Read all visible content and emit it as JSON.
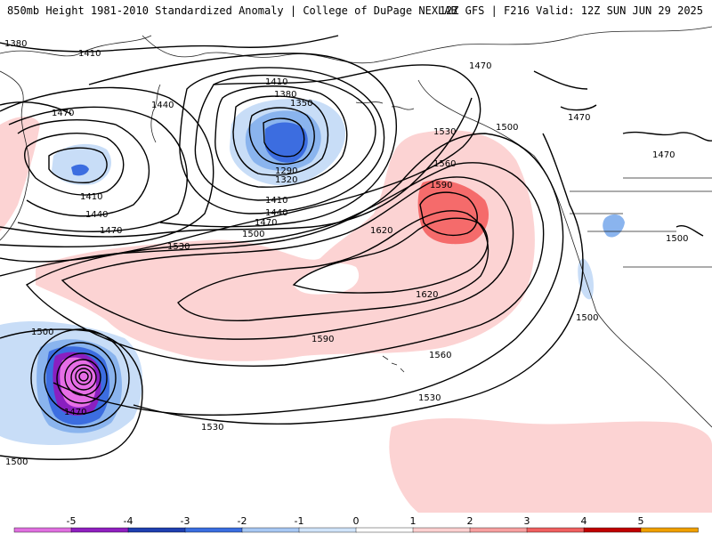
{
  "header": {
    "title": "850mb Height 1981-2010 Standardized Anomaly | College of DuPage NEXLAB",
    "run_info": "12Z GFS | F216 Valid: 12Z SUN JUN 29 2025"
  },
  "contours": {
    "labels": [
      {
        "id": "c1380a",
        "text": "1380"
      },
      {
        "id": "c1410a",
        "text": "1410"
      },
      {
        "id": "c1470a",
        "text": "1470"
      },
      {
        "id": "c1440a",
        "text": "1440"
      },
      {
        "id": "c1410b",
        "text": "1410"
      },
      {
        "id": "c1380b",
        "text": "1380"
      },
      {
        "id": "c1350",
        "text": "1350"
      },
      {
        "id": "c1290",
        "text": "1290"
      },
      {
        "id": "c1320",
        "text": "1320"
      },
      {
        "id": "c1410c",
        "text": "1410"
      },
      {
        "id": "c1440b",
        "text": "1440"
      },
      {
        "id": "c1470b",
        "text": "1470"
      },
      {
        "id": "c1500a",
        "text": "1500"
      },
      {
        "id": "c1410d",
        "text": "1410"
      },
      {
        "id": "c1440c",
        "text": "1440"
      },
      {
        "id": "c1470c",
        "text": "1470"
      },
      {
        "id": "c1470d",
        "text": "1470"
      },
      {
        "id": "c1500b",
        "text": "1500"
      },
      {
        "id": "c1530a",
        "text": "1530"
      },
      {
        "id": "c1560a",
        "text": "1560"
      },
      {
        "id": "c1590a",
        "text": "1590"
      },
      {
        "id": "c1620a",
        "text": "1620"
      },
      {
        "id": "c1530b",
        "text": "1530"
      },
      {
        "id": "c1620b",
        "text": "1620"
      },
      {
        "id": "c1590b",
        "text": "1590"
      },
      {
        "id": "c1560b",
        "text": "1560"
      },
      {
        "id": "c1530c",
        "text": "1530"
      },
      {
        "id": "c1530d",
        "text": "1530"
      },
      {
        "id": "c1500c",
        "text": "1500"
      },
      {
        "id": "c1470e",
        "text": "1470"
      },
      {
        "id": "c1500d",
        "text": "1500"
      },
      {
        "id": "c1470f",
        "text": "1470"
      },
      {
        "id": "c1470g",
        "text": "1470"
      },
      {
        "id": "c1500e",
        "text": "1500"
      },
      {
        "id": "c1500f",
        "text": "1500"
      }
    ]
  },
  "colorbar": {
    "ticks": [
      "-5",
      "-4",
      "-3",
      "-2",
      "-1",
      "0",
      "1",
      "2",
      "3",
      "4",
      "5"
    ],
    "colors": [
      "#e070e0",
      "#9020c0",
      "#1f3fb0",
      "#3a6ee0",
      "#a8c8f4",
      "#d0e4fa",
      "#ffffff",
      "#fcd0d0",
      "#f8a0a0",
      "#f06060",
      "#c00000",
      "#f0a000"
    ]
  },
  "colors": {
    "neg1": "#c8ddf7",
    "neg2": "#8ab4ee",
    "neg3": "#3c6de0",
    "neg4": "#1f3fb0",
    "neg5": "#8a1fc0",
    "neg6": "#e66ee6",
    "pos1": "#fcd3d3",
    "pos2": "#f56b6b"
  }
}
